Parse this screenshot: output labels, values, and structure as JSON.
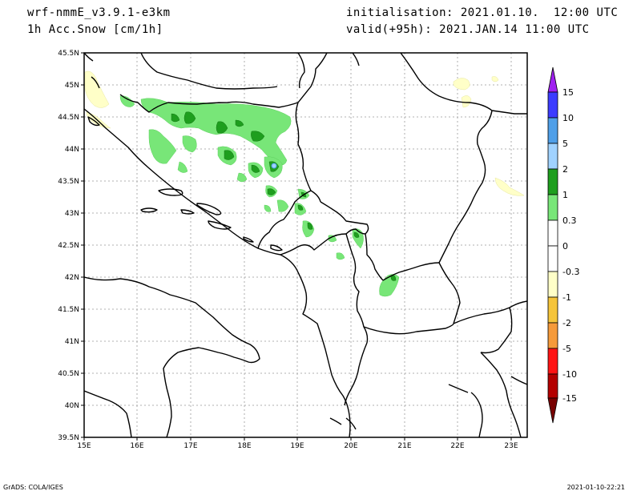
{
  "header": {
    "model": "wrf-nmmE_v3.9.1-e3km",
    "field": "1h Acc.Snow [cm/1h]",
    "init": "initialisation: 2021.01.10.  12:00 UTC",
    "valid": "valid(+95h): 2021.JAN.14 11:00 UTC"
  },
  "footer": {
    "left": "GrADS: COLA/IGES",
    "right": "2021-01-10-22:21"
  },
  "map": {
    "lon_ticks": [
      "15E",
      "16E",
      "17E",
      "18E",
      "19E",
      "20E",
      "21E",
      "22E",
      "23E"
    ],
    "lat_ticks": [
      "45.5N",
      "45N",
      "44.5N",
      "44N",
      "43.5N",
      "43N",
      "42.5N",
      "42N",
      "41.5N",
      "41N",
      "40.5N",
      "40N",
      "39.5N"
    ]
  },
  "legend": {
    "levels": [
      "15",
      "10",
      "5",
      "2",
      "1",
      "0.3",
      "0",
      "-0.3",
      "-1",
      "-2",
      "-5",
      "-10",
      "-15"
    ],
    "colors": {
      "violet": "#a020f0",
      "blue": "#3c3cff",
      "mid-blue": "#4f9fe8",
      "light-blue": "#a0d2ff",
      "dark-green": "#1e9e1e",
      "light-green": "#78e678",
      "white": "#ffffff",
      "pale-yellow": "#ffffc8",
      "gold": "#f5c43a",
      "orange": "#f59a3a",
      "red": "#ff1414",
      "dark-red": "#b40000",
      "maroon": "#780000"
    }
  }
}
